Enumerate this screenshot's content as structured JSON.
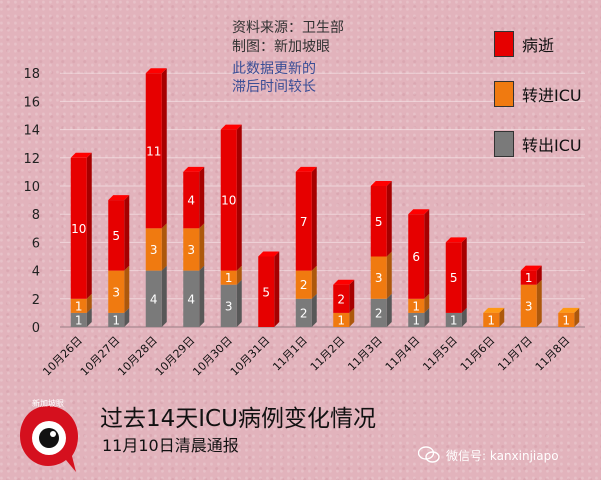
{
  "source_note": {
    "line1": "资料来源：卫生部",
    "line2": "制图：新加坡眼",
    "line3": "此数据更新的",
    "line4": "滞后时间较长"
  },
  "title": "过去14天ICU病例变化情况",
  "subtitle": "11月10日清晨通报",
  "logo_text": "新加坡眼",
  "wechat": "微信号: kanxinjiapo",
  "colors": {
    "death": "#e60000",
    "into_icu": "#f07a10",
    "out_icu": "#7a7a7a"
  },
  "chart_data": {
    "type": "bar",
    "stacked": true,
    "categories": [
      "10月26日",
      "10月27日",
      "10月28日",
      "10月29日",
      "10月30日",
      "10月31日",
      "11月1日",
      "11月2日",
      "11月3日",
      "11月4日",
      "11月5日",
      "11月6日",
      "11月7日",
      "11月8日"
    ],
    "series": [
      {
        "name": "转出ICU",
        "color": "#7a7a7a",
        "values": [
          1,
          1,
          4,
          4,
          3,
          0,
          2,
          0,
          2,
          1,
          1,
          0,
          0,
          0
        ]
      },
      {
        "name": "转进ICU",
        "color": "#f07a10",
        "values": [
          1,
          3,
          3,
          3,
          1,
          0,
          2,
          1,
          3,
          1,
          0,
          1,
          3,
          1
        ]
      },
      {
        "name": "病逝",
        "color": "#e60000",
        "values": [
          10,
          5,
          11,
          4,
          10,
          5,
          7,
          2,
          5,
          6,
          5,
          0,
          1,
          0
        ]
      }
    ],
    "yticks": [
      0,
      2,
      4,
      6,
      8,
      10,
      12,
      14,
      16,
      18
    ],
    "ylim": [
      0,
      19
    ],
    "grid": true,
    "legend_position": "top-right"
  }
}
